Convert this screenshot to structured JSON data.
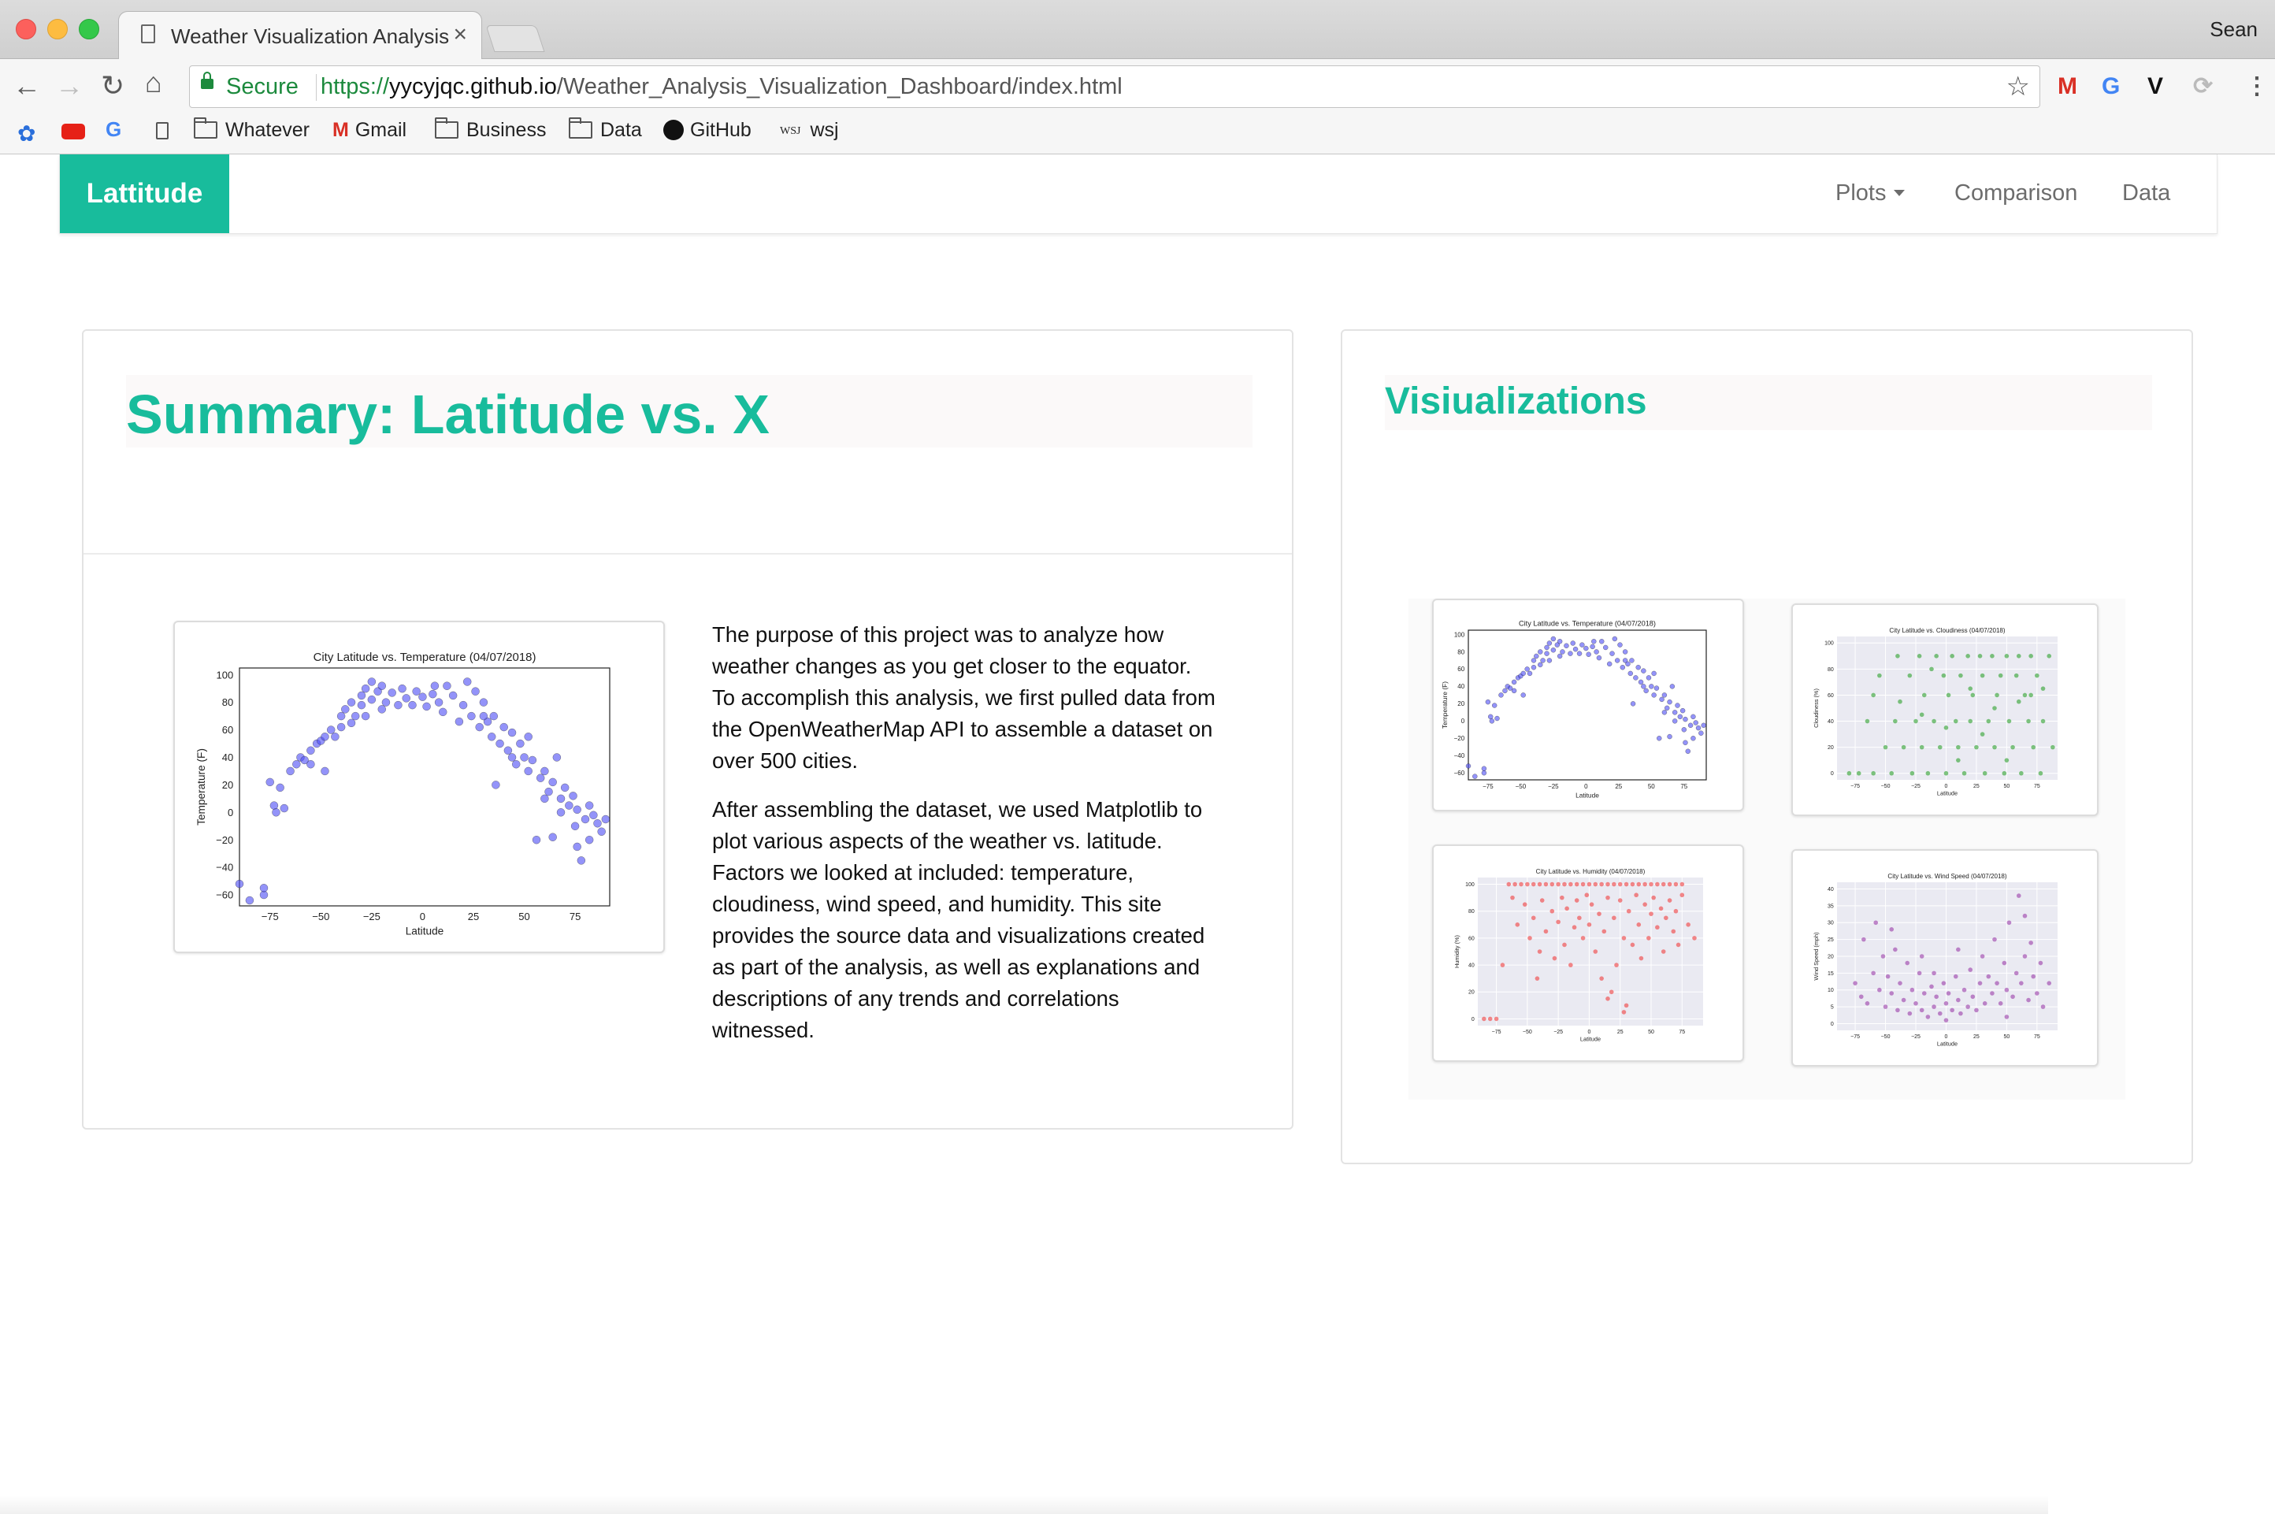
{
  "browser": {
    "tab_title": "Weather Visualization Analysis",
    "tab_close": "×",
    "user": "Sean",
    "secure_label": "Secure",
    "url_proto": "https://",
    "url_host": "yycyjqc.github.io",
    "url_path": "/Weather_Analysis_Visualization_Dashboard/index.html",
    "bookmarks": [
      "Whatever",
      "Gmail",
      "Business",
      "Data",
      "GitHub",
      "wsj"
    ],
    "wsj_icon_text": "WSJ"
  },
  "navbar": {
    "brand": "Lattitude",
    "items": [
      "Plots",
      "Comparison",
      "Data"
    ]
  },
  "summary": {
    "title": "Summary: Latitude vs. X",
    "paragraphs": [
      "The purpose of this project was to analyze how weather changes as you get closer to the equator. To accomplish this analysis, we first pulled data from the OpenWeatherMap API to assemble a dataset on over 500 cities.",
      "After assembling the dataset, we used Matplotlib to plot various aspects of the weather vs. latitude. Factors we looked at included: temperature, cloudiness, wind speed, and humidity. This site provides the source data and visualizations created as part of the analysis, as well as explanations and descriptions of any trends and correlations witnessed."
    ]
  },
  "visualizations": {
    "title": "Visiualizations"
  },
  "colors": {
    "accent": "#18bc9c",
    "temp": "#4b4bf5",
    "cloud": "#2ca02c",
    "humidity": "#f03c3c",
    "wind": "#9a3aa8"
  },
  "chart_data": [
    {
      "type": "scatter",
      "title": "City Latitude vs. Temperature (04/07/2018)",
      "xlabel": "Latitude",
      "ylabel": "Temperature (F)",
      "xlim": [
        -90,
        92
      ],
      "ylim": [
        -68,
        105
      ],
      "xticks": [
        -75,
        -50,
        -25,
        0,
        25,
        50,
        75
      ],
      "yticks": [
        100,
        80,
        60,
        40,
        20,
        0,
        -20,
        -40,
        -60
      ],
      "style": "plain",
      "points": [
        [
          -90,
          -52
        ],
        [
          -85,
          -64
        ],
        [
          -78,
          -60
        ],
        [
          -78,
          -55
        ],
        [
          -75,
          22
        ],
        [
          -73,
          5
        ],
        [
          -72,
          0
        ],
        [
          -70,
          18
        ],
        [
          -68,
          3
        ],
        [
          -65,
          30
        ],
        [
          -62,
          35
        ],
        [
          -60,
          40
        ],
        [
          -58,
          38
        ],
        [
          -55,
          45
        ],
        [
          -52,
          50
        ],
        [
          -50,
          52
        ],
        [
          -48,
          30
        ],
        [
          -48,
          55
        ],
        [
          -45,
          60
        ],
        [
          -43,
          55
        ],
        [
          -40,
          62
        ],
        [
          -40,
          70
        ],
        [
          -38,
          75
        ],
        [
          -35,
          65
        ],
        [
          -35,
          80
        ],
        [
          -33,
          70
        ],
        [
          -30,
          85
        ],
        [
          -30,
          78
        ],
        [
          -28,
          90
        ],
        [
          -25,
          82
        ],
        [
          -25,
          95
        ],
        [
          -22,
          88
        ],
        [
          -20,
          75
        ],
        [
          -20,
          92
        ],
        [
          -18,
          80
        ],
        [
          -15,
          87
        ],
        [
          -12,
          78
        ],
        [
          -10,
          90
        ],
        [
          -8,
          83
        ],
        [
          -5,
          78
        ],
        [
          -3,
          88
        ],
        [
          0,
          84
        ],
        [
          2,
          77
        ],
        [
          5,
          86
        ],
        [
          8,
          80
        ],
        [
          10,
          73
        ],
        [
          12,
          92
        ],
        [
          15,
          85
        ],
        [
          18,
          66
        ],
        [
          20,
          78
        ],
        [
          22,
          95
        ],
        [
          24,
          70
        ],
        [
          26,
          88
        ],
        [
          28,
          62
        ],
        [
          30,
          80
        ],
        [
          32,
          66
        ],
        [
          34,
          55
        ],
        [
          35,
          70
        ],
        [
          36,
          20
        ],
        [
          38,
          50
        ],
        [
          40,
          62
        ],
        [
          42,
          45
        ],
        [
          44,
          58
        ],
        [
          46,
          35
        ],
        [
          48,
          50
        ],
        [
          50,
          40
        ],
        [
          52,
          30
        ],
        [
          54,
          38
        ],
        [
          56,
          -20
        ],
        [
          58,
          25
        ],
        [
          60,
          30
        ],
        [
          62,
          15
        ],
        [
          64,
          22
        ],
        [
          66,
          40
        ],
        [
          68,
          10
        ],
        [
          70,
          18
        ],
        [
          72,
          5
        ],
        [
          74,
          12
        ],
        [
          75,
          -10
        ],
        [
          76,
          2
        ],
        [
          78,
          -35
        ],
        [
          80,
          -5
        ],
        [
          82,
          -20
        ],
        [
          84,
          -2
        ],
        [
          86,
          -8
        ],
        [
          88,
          -14
        ],
        [
          90,
          -5
        ],
        [
          44,
          40
        ],
        [
          52,
          55
        ],
        [
          60,
          10
        ],
        [
          68,
          0
        ],
        [
          76,
          -25
        ],
        [
          -55,
          35
        ],
        [
          -28,
          70
        ],
        [
          6,
          92
        ],
        [
          30,
          70
        ],
        [
          64,
          -18
        ],
        [
          82,
          5
        ]
      ]
    },
    {
      "type": "scatter",
      "title": "City Latitude vs. Cloudiness (04/07/2018)",
      "xlabel": "Latitude",
      "ylabel": "Cloudiness (%)",
      "xlim": [
        -90,
        92
      ],
      "ylim": [
        -5,
        105
      ],
      "xticks": [
        -75,
        -50,
        -25,
        0,
        25,
        50,
        75
      ],
      "yticks": [
        100,
        80,
        60,
        40,
        20,
        0
      ],
      "style": "seaborn",
      "points": [
        [
          -80,
          0
        ],
        [
          -72,
          0
        ],
        [
          -65,
          40
        ],
        [
          -60,
          0
        ],
        [
          -55,
          75
        ],
        [
          -50,
          20
        ],
        [
          -45,
          0
        ],
        [
          -42,
          40
        ],
        [
          -40,
          90
        ],
        [
          -35,
          20
        ],
        [
          -30,
          75
        ],
        [
          -28,
          0
        ],
        [
          -25,
          40
        ],
        [
          -22,
          90
        ],
        [
          -20,
          20
        ],
        [
          -18,
          60
        ],
        [
          -15,
          0
        ],
        [
          -12,
          80
        ],
        [
          -10,
          40
        ],
        [
          -8,
          90
        ],
        [
          -5,
          20
        ],
        [
          -2,
          75
        ],
        [
          0,
          0
        ],
        [
          2,
          60
        ],
        [
          5,
          90
        ],
        [
          8,
          40
        ],
        [
          10,
          20
        ],
        [
          12,
          75
        ],
        [
          15,
          0
        ],
        [
          18,
          90
        ],
        [
          20,
          40
        ],
        [
          22,
          60
        ],
        [
          25,
          20
        ],
        [
          28,
          90
        ],
        [
          30,
          75
        ],
        [
          32,
          0
        ],
        [
          35,
          40
        ],
        [
          38,
          90
        ],
        [
          40,
          20
        ],
        [
          42,
          60
        ],
        [
          45,
          75
        ],
        [
          48,
          0
        ],
        [
          50,
          90
        ],
        [
          52,
          40
        ],
        [
          55,
          20
        ],
        [
          58,
          75
        ],
        [
          60,
          90
        ],
        [
          62,
          0
        ],
        [
          65,
          60
        ],
        [
          68,
          40
        ],
        [
          70,
          90
        ],
        [
          72,
          20
        ],
        [
          75,
          75
        ],
        [
          78,
          0
        ],
        [
          80,
          40
        ],
        [
          85,
          90
        ],
        [
          88,
          20
        ],
        [
          -38,
          55
        ],
        [
          -20,
          45
        ],
        [
          0,
          35
        ],
        [
          20,
          65
        ],
        [
          40,
          50
        ],
        [
          60,
          55
        ],
        [
          80,
          65
        ],
        [
          -60,
          60
        ],
        [
          10,
          10
        ],
        [
          30,
          30
        ],
        [
          50,
          10
        ],
        [
          70,
          60
        ]
      ]
    },
    {
      "type": "scatter",
      "title": "City Latitude vs. Humidity (04/07/2018)",
      "xlabel": "Latitude",
      "ylabel": "Humidity (%)",
      "xlim": [
        -90,
        92
      ],
      "ylim": [
        -5,
        105
      ],
      "xticks": [
        -75,
        -50,
        -25,
        0,
        25,
        50,
        75
      ],
      "yticks": [
        100,
        80,
        60,
        40,
        20,
        0
      ],
      "style": "seaborn",
      "points": [
        [
          -85,
          0
        ],
        [
          -80,
          0
        ],
        [
          -75,
          0
        ],
        [
          -65,
          100
        ],
        [
          -60,
          100
        ],
        [
          -55,
          100
        ],
        [
          -50,
          100
        ],
        [
          -45,
          100
        ],
        [
          -40,
          100
        ],
        [
          -35,
          100
        ],
        [
          -30,
          100
        ],
        [
          -25,
          100
        ],
        [
          -20,
          100
        ],
        [
          -15,
          100
        ],
        [
          -10,
          100
        ],
        [
          -5,
          100
        ],
        [
          0,
          100
        ],
        [
          5,
          100
        ],
        [
          10,
          100
        ],
        [
          15,
          100
        ],
        [
          20,
          100
        ],
        [
          25,
          100
        ],
        [
          30,
          100
        ],
        [
          35,
          100
        ],
        [
          40,
          100
        ],
        [
          45,
          100
        ],
        [
          50,
          100
        ],
        [
          55,
          100
        ],
        [
          60,
          100
        ],
        [
          65,
          100
        ],
        [
          70,
          100
        ],
        [
          75,
          100
        ],
        [
          -62,
          90
        ],
        [
          -58,
          70
        ],
        [
          -52,
          85
        ],
        [
          -48,
          60
        ],
        [
          -45,
          75
        ],
        [
          -40,
          50
        ],
        [
          -38,
          88
        ],
        [
          -35,
          65
        ],
        [
          -30,
          80
        ],
        [
          -28,
          45
        ],
        [
          -25,
          72
        ],
        [
          -22,
          90
        ],
        [
          -20,
          55
        ],
        [
          -18,
          82
        ],
        [
          -15,
          40
        ],
        [
          -12,
          68
        ],
        [
          -10,
          88
        ],
        [
          -8,
          75
        ],
        [
          -5,
          60
        ],
        [
          -2,
          92
        ],
        [
          0,
          70
        ],
        [
          2,
          85
        ],
        [
          5,
          50
        ],
        [
          8,
          78
        ],
        [
          10,
          30
        ],
        [
          12,
          65
        ],
        [
          15,
          90
        ],
        [
          18,
          20
        ],
        [
          20,
          75
        ],
        [
          22,
          40
        ],
        [
          25,
          88
        ],
        [
          28,
          60
        ],
        [
          30,
          10
        ],
        [
          32,
          80
        ],
        [
          35,
          55
        ],
        [
          38,
          92
        ],
        [
          40,
          70
        ],
        [
          42,
          45
        ],
        [
          45,
          85
        ],
        [
          48,
          60
        ],
        [
          50,
          78
        ],
        [
          52,
          90
        ],
        [
          55,
          68
        ],
        [
          58,
          82
        ],
        [
          60,
          50
        ],
        [
          62,
          75
        ],
        [
          65,
          88
        ],
        [
          68,
          65
        ],
        [
          70,
          80
        ],
        [
          72,
          55
        ],
        [
          75,
          92
        ],
        [
          80,
          70
        ],
        [
          85,
          60
        ],
        [
          -70,
          40
        ],
        [
          -42,
          30
        ],
        [
          15,
          15
        ],
        [
          28,
          5
        ]
      ]
    },
    {
      "type": "scatter",
      "title": "City Latitude vs. Wind Speed (04/07/2018)",
      "xlabel": "Latitude",
      "ylabel": "Wind Speed (mph)",
      "xlim": [
        -90,
        92
      ],
      "ylim": [
        -2,
        42
      ],
      "xticks": [
        -75,
        -50,
        -25,
        0,
        25,
        50,
        75
      ],
      "yticks": [
        40,
        35,
        30,
        25,
        20,
        15,
        10,
        5,
        0
      ],
      "style": "seaborn",
      "points": [
        [
          -75,
          12
        ],
        [
          -70,
          8
        ],
        [
          -68,
          25
        ],
        [
          -65,
          6
        ],
        [
          -60,
          15
        ],
        [
          -58,
          30
        ],
        [
          -55,
          10
        ],
        [
          -52,
          20
        ],
        [
          -50,
          5
        ],
        [
          -48,
          14
        ],
        [
          -45,
          9
        ],
        [
          -42,
          22
        ],
        [
          -40,
          4
        ],
        [
          -38,
          12
        ],
        [
          -35,
          7
        ],
        [
          -32,
          18
        ],
        [
          -30,
          3
        ],
        [
          -28,
          10
        ],
        [
          -25,
          6
        ],
        [
          -22,
          15
        ],
        [
          -20,
          4
        ],
        [
          -18,
          9
        ],
        [
          -15,
          2
        ],
        [
          -12,
          11
        ],
        [
          -10,
          5
        ],
        [
          -8,
          8
        ],
        [
          -5,
          3
        ],
        [
          -2,
          12
        ],
        [
          0,
          6
        ],
        [
          2,
          9
        ],
        [
          5,
          4
        ],
        [
          8,
          14
        ],
        [
          10,
          7
        ],
        [
          12,
          3
        ],
        [
          15,
          10
        ],
        [
          18,
          5
        ],
        [
          20,
          16
        ],
        [
          22,
          8
        ],
        [
          25,
          4
        ],
        [
          28,
          12
        ],
        [
          30,
          20
        ],
        [
          32,
          6
        ],
        [
          35,
          14
        ],
        [
          38,
          9
        ],
        [
          40,
          25
        ],
        [
          42,
          12
        ],
        [
          45,
          6
        ],
        [
          48,
          18
        ],
        [
          50,
          10
        ],
        [
          52,
          30
        ],
        [
          55,
          8
        ],
        [
          58,
          15
        ],
        [
          60,
          38
        ],
        [
          62,
          12
        ],
        [
          65,
          20
        ],
        [
          68,
          7
        ],
        [
          70,
          24
        ],
        [
          72,
          14
        ],
        [
          75,
          9
        ],
        [
          78,
          18
        ],
        [
          80,
          5
        ],
        [
          85,
          12
        ],
        [
          -45,
          28
        ],
        [
          -20,
          20
        ],
        [
          10,
          22
        ],
        [
          50,
          2
        ],
        [
          65,
          32
        ],
        [
          0,
          1
        ],
        [
          -10,
          15
        ]
      ]
    }
  ]
}
